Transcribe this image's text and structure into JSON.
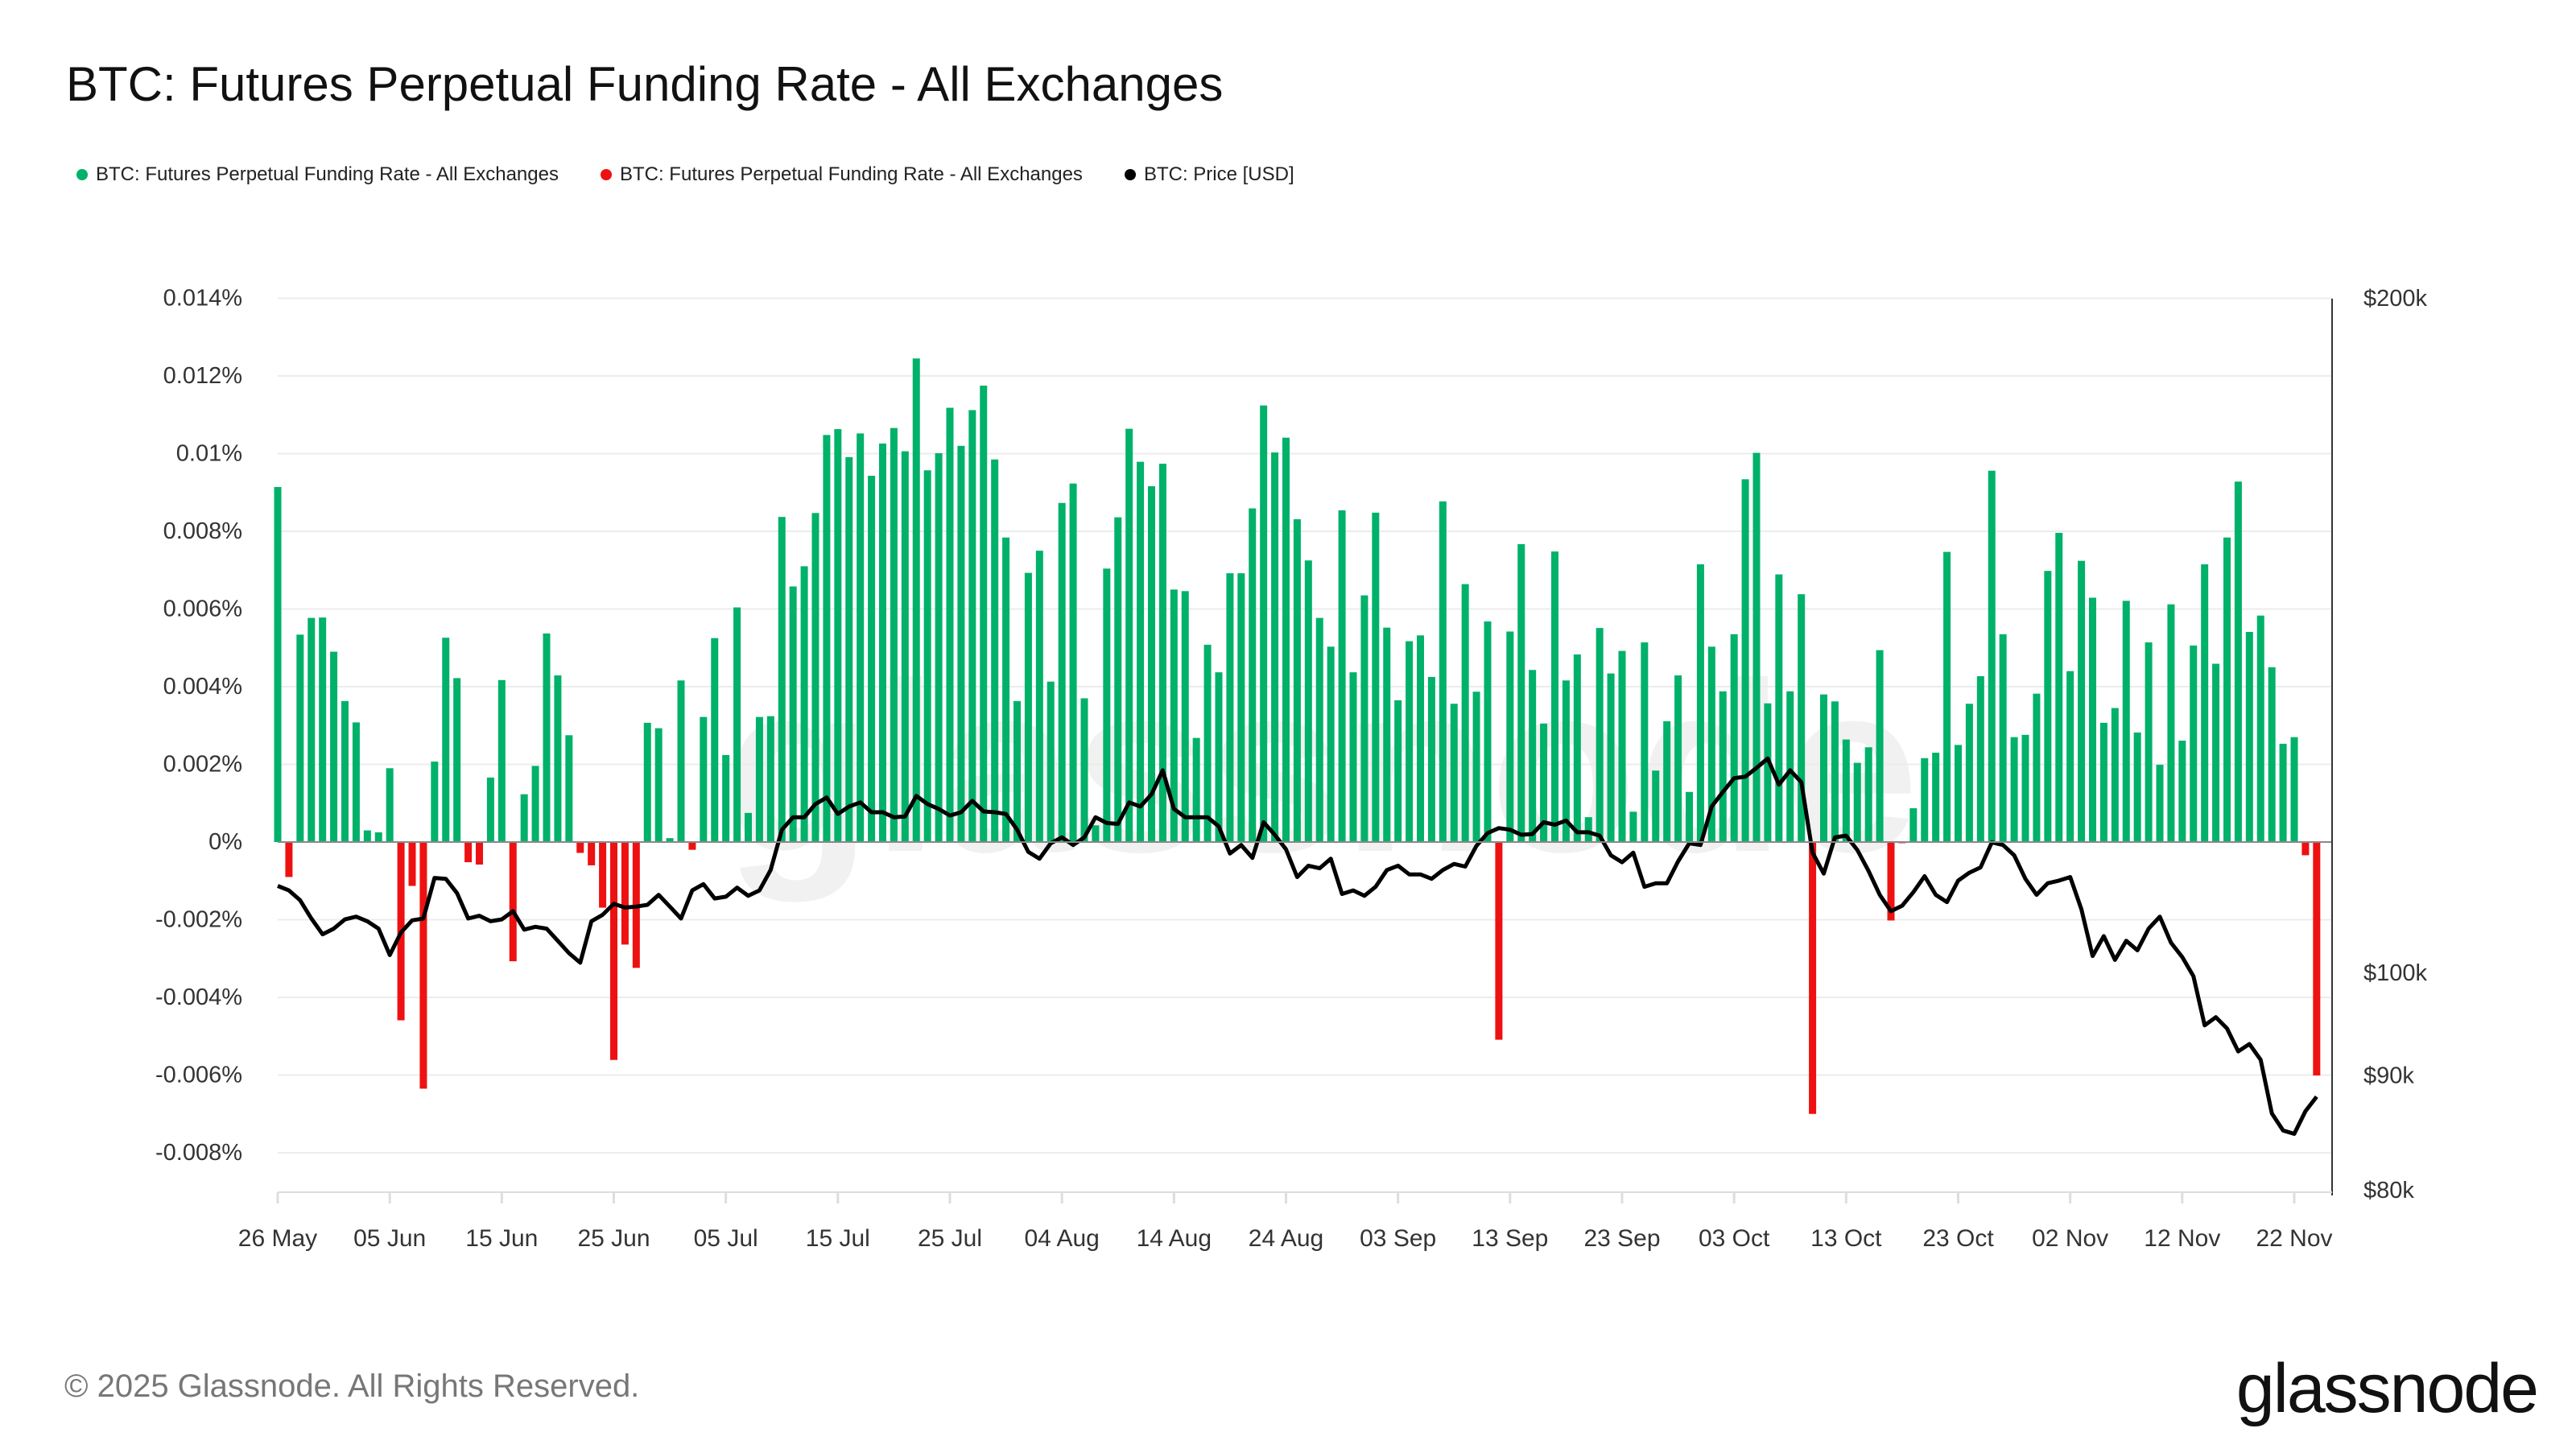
{
  "title": "BTC: Futures Perpetual Funding Rate - All Exchanges",
  "legend": [
    {
      "label": "BTC: Futures Perpetual Funding Rate - All Exchanges",
      "color": "#00b16a"
    },
    {
      "label": "BTC: Futures Perpetual Funding Rate - All Exchanges",
      "color": "#ee1111"
    },
    {
      "label": "BTC: Price [USD]",
      "color": "#000000"
    }
  ],
  "footer": {
    "copyright": "© 2025 Glassnode. All Rights Reserved.",
    "logo": "glassnode",
    "watermark": "glassnode"
  },
  "chart_data": {
    "type": "bar",
    "title": "BTC: Futures Perpetual Funding Rate - All Exchanges",
    "grid": true,
    "legend_position": "top-left",
    "colors": {
      "positive": "#00b16a",
      "negative": "#ee1111",
      "price": "#000000"
    },
    "x_start": "2025-05-26",
    "x_ticks": [
      "26 May",
      "05 Jun",
      "15 Jun",
      "25 Jun",
      "05 Jul",
      "15 Jul",
      "25 Jul",
      "04 Aug",
      "14 Aug",
      "24 Aug",
      "03 Sep",
      "13 Sep",
      "23 Sep",
      "03 Oct",
      "13 Oct",
      "23 Oct",
      "02 Nov",
      "12 Nov",
      "22 Nov"
    ],
    "y_left": {
      "ticks": [
        "0.014%",
        "0.012%",
        "0.01%",
        "0.008%",
        "0.006%",
        "0.004%",
        "0.002%",
        "0%",
        "-0.002%",
        "-0.004%",
        "-0.006%",
        "-0.008%"
      ],
      "tick_values": [
        0.014,
        0.012,
        0.01,
        0.008,
        0.006,
        0.004,
        0.002,
        0,
        -0.002,
        -0.004,
        -0.006,
        -0.008
      ],
      "ylim": [
        -0.009,
        0.014
      ],
      "unit": "%"
    },
    "y_right": {
      "scale": "log",
      "ticks": [
        "$200k",
        "$100k",
        "$90k",
        "$80k"
      ],
      "tick_values": [
        200000,
        100000,
        90000,
        80000
      ],
      "ylim": [
        80000,
        200000
      ]
    },
    "series": [
      {
        "name": "BTC: Futures Perpetual Funding Rate - All Exchanges",
        "type": "bar",
        "values": [
          0.00914,
          -0.0009,
          0.00534,
          0.00577,
          0.00578,
          0.0049,
          0.00363,
          0.00308,
          0.0003,
          0.00025,
          0.0019,
          -0.00459,
          -0.00113,
          -0.00635,
          0.00207,
          0.00526,
          0.00422,
          -0.00052,
          -0.00058,
          0.00166,
          0.00417,
          -0.00307,
          0.00123,
          0.00196,
          0.00537,
          0.00429,
          0.00275,
          -0.00028,
          -0.0006,
          -0.00169,
          -0.00561,
          -0.00264,
          -0.00324,
          0.00307,
          0.00293,
          0.0001,
          0.00416,
          -0.0002,
          0.00322,
          0.00525,
          0.00224,
          0.00604,
          0.00075,
          0.00322,
          0.00324,
          0.00837,
          0.00658,
          0.0071,
          0.00847,
          0.01048,
          0.01063,
          0.00991,
          0.01052,
          0.00943,
          0.01026,
          0.01066,
          0.01006,
          0.01245,
          0.00957,
          0.01001,
          0.01118,
          0.0102,
          0.01112,
          0.01175,
          0.00985,
          0.00784,
          0.00363,
          0.00693,
          0.0075,
          0.00413,
          0.00873,
          0.00923,
          0.0037,
          0.00043,
          0.00704,
          0.00836,
          0.01064,
          0.00979,
          0.00916,
          0.00974,
          0.0065,
          0.00646,
          0.00268,
          0.00508,
          0.00437,
          0.00692,
          0.00692,
          0.00859,
          0.01124,
          0.01003,
          0.01041,
          0.00831,
          0.00725,
          0.00577,
          0.00503,
          0.00854,
          0.00437,
          0.00635,
          0.00848,
          0.00552,
          0.00365,
          0.00517,
          0.00532,
          0.00425,
          0.00877,
          0.00356,
          0.00664,
          0.00387,
          0.00568,
          -0.00509,
          0.00542,
          0.00767,
          0.00443,
          0.00305,
          0.00748,
          0.00416,
          0.00483,
          0.00064,
          0.00551,
          0.00434,
          0.00492,
          0.00078,
          0.00514,
          0.00184,
          0.00311,
          0.00429,
          0.00129,
          0.00715,
          0.00503,
          0.00388,
          0.00535,
          0.00934,
          0.01002,
          0.00357,
          0.00689,
          0.00388,
          0.00638,
          -0.007,
          0.0038,
          0.00362,
          0.00264,
          0.00204,
          0.00244,
          0.00494,
          -0.00202,
          -3e-05,
          0.00087,
          0.00216,
          0.0023,
          0.00747,
          0.0025,
          0.00356,
          0.00427,
          0.00956,
          0.00535,
          0.0027,
          0.00276,
          0.00382,
          0.00698,
          0.00796,
          0.0044,
          0.00724,
          0.00629,
          0.00307,
          0.00345,
          0.00621,
          0.00282,
          0.00514,
          0.00199,
          0.00612,
          0.00261,
          0.00506,
          0.00715,
          0.00459,
          0.00784,
          0.00928,
          0.00541,
          0.00583,
          0.0045,
          0.00253,
          0.0027,
          -0.00034,
          -0.00601
        ]
      },
      {
        "name": "BTC: Price [USD]",
        "type": "line",
        "values": [
          109400,
          108900,
          107800,
          105800,
          104100,
          104700,
          105700,
          106000,
          105500,
          104700,
          101900,
          104300,
          105600,
          105800,
          110300,
          110200,
          108600,
          105800,
          106100,
          105500,
          105700,
          106600,
          104600,
          104900,
          104700,
          103400,
          102100,
          101100,
          105500,
          106200,
          107400,
          107000,
          107100,
          107300,
          108400,
          107100,
          105800,
          108900,
          109600,
          108000,
          108200,
          109200,
          108300,
          108900,
          111200,
          115900,
          117400,
          117400,
          119000,
          119800,
          117800,
          118700,
          119200,
          118000,
          118000,
          117400,
          117500,
          120000,
          119000,
          118400,
          117600,
          118000,
          119400,
          118100,
          118000,
          117800,
          115900,
          113300,
          112500,
          114300,
          115000,
          114100,
          115000,
          117400,
          116700,
          116600,
          119200,
          118700,
          120200,
          123200,
          118400,
          117400,
          117400,
          117400,
          116300,
          113100,
          114100,
          112600,
          116800,
          115300,
          113600,
          110400,
          111700,
          111400,
          112500,
          108500,
          108900,
          108300,
          109300,
          111200,
          111700,
          110700,
          110700,
          110200,
          111200,
          111900,
          111600,
          114000,
          115500,
          116100,
          115900,
          115300,
          115400,
          116800,
          116500,
          117000,
          115600,
          115600,
          115200,
          112900,
          112100,
          113200,
          109300,
          109700,
          109700,
          112200,
          114300,
          114100,
          118700,
          120500,
          122200,
          122400,
          123500,
          124700,
          121400,
          123200,
          121700,
          113200,
          110800,
          115000,
          115200,
          113500,
          111100,
          108400,
          106600,
          107200,
          108700,
          110500,
          108400,
          107600,
          110000,
          110900,
          111500,
          114400,
          114100,
          112900,
          110200,
          108400,
          109700,
          110000,
          110400,
          106800,
          101800,
          103900,
          101400,
          103400,
          102400,
          104700,
          106000,
          103200,
          101700,
          99700,
          94800,
          95600,
          94500,
          92300,
          93000,
          91500,
          86600,
          85100,
          84800,
          86800,
          88100
        ]
      }
    ]
  }
}
